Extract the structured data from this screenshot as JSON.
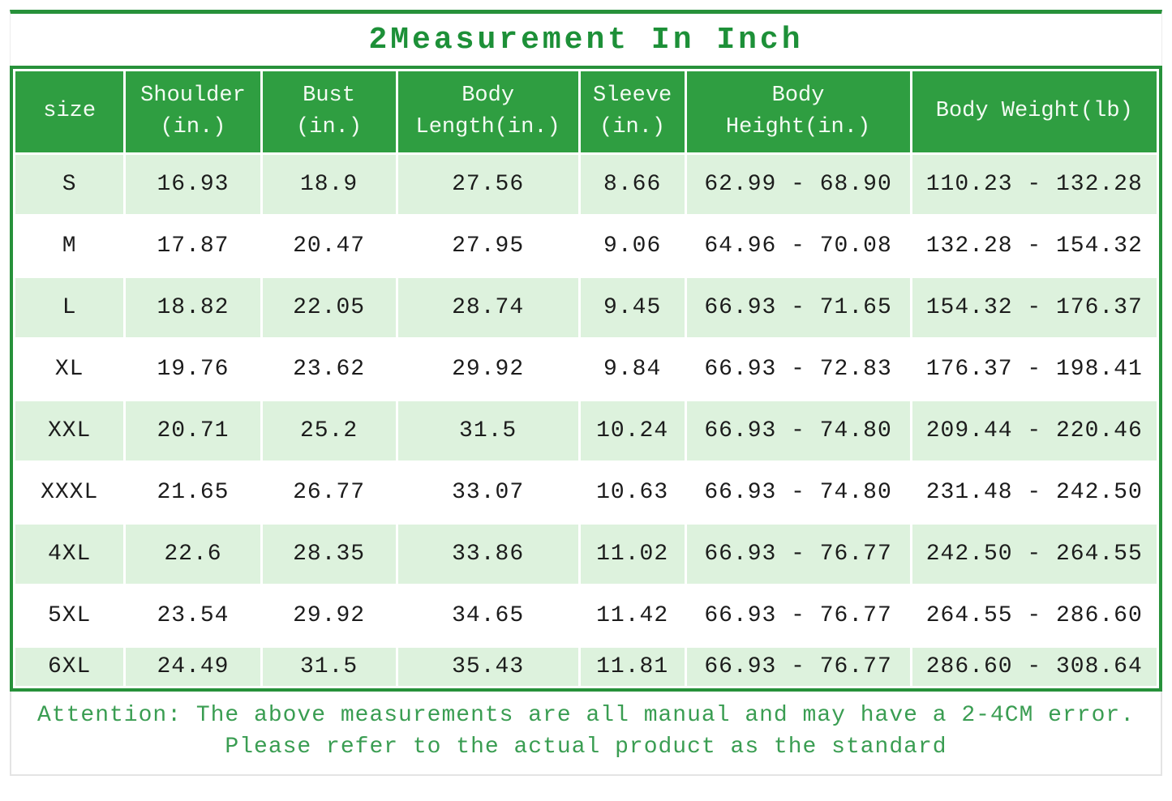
{
  "title": "2Measurement In Inch",
  "table": {
    "columns": [
      "size",
      "Shoulder\n(in.)",
      "Bust\n(in.)",
      "Body\nLength(in.)",
      "Sleeve\n(in.)",
      "Body\nHeight(in.)",
      "Body Weight(lb)"
    ],
    "rows": [
      [
        "S",
        "16.93",
        "18.9",
        "27.56",
        "8.66",
        "62.99 - 68.90",
        "110.23 - 132.28"
      ],
      [
        "M",
        "17.87",
        "20.47",
        "27.95",
        "9.06",
        "64.96 - 70.08",
        "132.28 - 154.32"
      ],
      [
        "L",
        "18.82",
        "22.05",
        "28.74",
        "9.45",
        "66.93 - 71.65",
        "154.32 - 176.37"
      ],
      [
        "XL",
        "19.76",
        "23.62",
        "29.92",
        "9.84",
        "66.93 - 72.83",
        "176.37 - 198.41"
      ],
      [
        "XXL",
        "20.71",
        "25.2",
        "31.5",
        "10.24",
        "66.93 - 74.80",
        "209.44 - 220.46"
      ],
      [
        "XXXL",
        "21.65",
        "26.77",
        "33.07",
        "10.63",
        "66.93 - 74.80",
        "231.48 - 242.50"
      ],
      [
        "4XL",
        "22.6",
        "28.35",
        "33.86",
        "11.02",
        "66.93 - 76.77",
        "242.50 - 264.55"
      ],
      [
        "5XL",
        "23.54",
        "29.92",
        "34.65",
        "11.42",
        "66.93 - 76.77",
        "264.55 - 286.60"
      ],
      [
        "6XL",
        "24.49",
        "31.5",
        "35.43",
        "11.81",
        "66.93 - 76.77",
        "286.60 - 308.64"
      ]
    ]
  },
  "footer": {
    "line1": "Attention: The above measurements are all manual and may have a 2-4CM error.",
    "line2": "Please refer to the actual product as the standard"
  },
  "colors": {
    "header_green": "#2f9e41",
    "border_green": "#27913a",
    "row_tint_green": "#ddf2dd",
    "title_green": "#1d9038",
    "footer_green": "#3a9d52",
    "body_text": "#1c1c1c"
  }
}
